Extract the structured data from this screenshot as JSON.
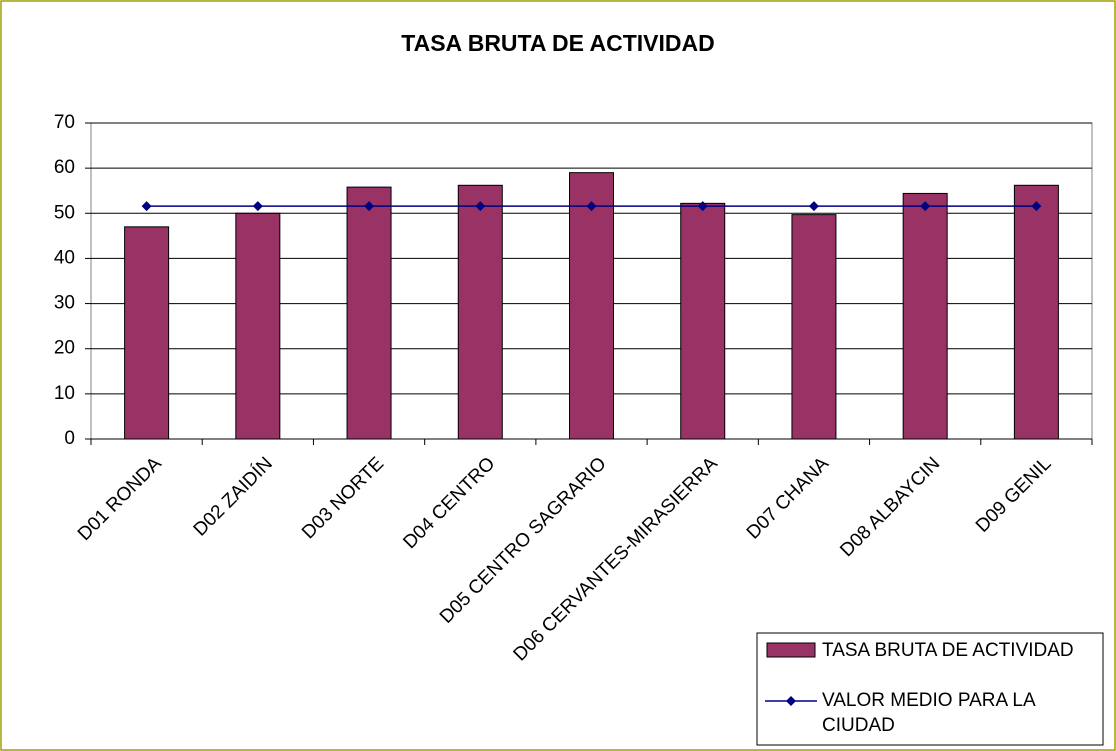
{
  "chart_data": {
    "type": "bar",
    "title": "TASA BRUTA DE ACTIVIDAD",
    "categories": [
      "D01 RONDA",
      "D02 ZAIDÍN",
      "D03 NORTE",
      "D04 CENTRO",
      "D05 CENTRO SAGRARIO",
      "D06 CERVANTES-MIRASIERRA",
      "D07 CHANA",
      "D08 ALBAYCIN",
      "D09 GENIL"
    ],
    "series": [
      {
        "name": "TASA BRUTA DE ACTIVIDAD",
        "type": "bar",
        "color": "#993366",
        "values": [
          47.0,
          50.0,
          55.8,
          56.2,
          59.0,
          52.2,
          49.7,
          54.4,
          56.2
        ]
      },
      {
        "name": "VALOR MEDIO PARA LA CIUDAD",
        "type": "line",
        "color": "#000080",
        "values": [
          51.6,
          51.6,
          51.6,
          51.6,
          51.6,
          51.6,
          51.6,
          51.6,
          51.6
        ]
      }
    ],
    "ylim": [
      0,
      70
    ],
    "yticks": [
      0,
      10,
      20,
      30,
      40,
      50,
      60,
      70
    ],
    "grid": true,
    "legend": "bottom-right"
  }
}
